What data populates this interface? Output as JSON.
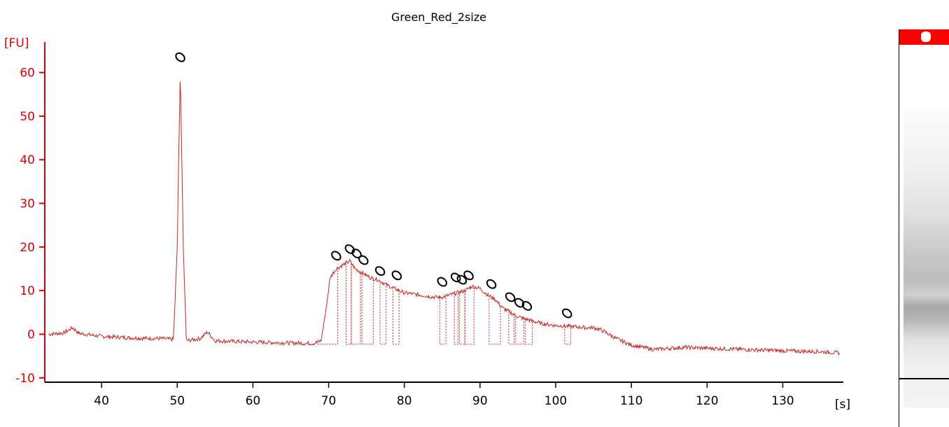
{
  "chart_data": {
    "type": "line",
    "title": "Green_Red_2size",
    "xlabel": "[s]",
    "ylabel": "[FU]",
    "xlim": [
      32.5,
      138
    ],
    "ylim": [
      -11,
      67
    ],
    "xticks": [
      40,
      50,
      60,
      70,
      80,
      90,
      100,
      110,
      120,
      130
    ],
    "yticks": [
      -10,
      0,
      10,
      20,
      30,
      40,
      50,
      60
    ],
    "colors": {
      "trace": "#cc2222",
      "axis": "#dd0000",
      "peak_marker": "#000000"
    },
    "series": [
      {
        "values": [
          [
            33,
            0.0
          ],
          [
            35,
            0.3
          ],
          [
            36.2,
            1.5
          ],
          [
            37,
            0.2
          ],
          [
            40,
            -0.5
          ],
          [
            45,
            -0.9
          ],
          [
            48,
            -1.0
          ],
          [
            49.5,
            -1.2
          ],
          [
            50.0,
            20
          ],
          [
            50.4,
            61
          ],
          [
            50.8,
            20
          ],
          [
            51.2,
            -1.5
          ],
          [
            53,
            -1.0
          ],
          [
            54,
            0.5
          ],
          [
            55,
            -1.5
          ],
          [
            60,
            -1.8
          ],
          [
            65,
            -2.0
          ],
          [
            68,
            -2.1
          ],
          [
            69,
            -1.5
          ],
          [
            69.6,
            5
          ],
          [
            70.2,
            13
          ],
          [
            71,
            15
          ],
          [
            72,
            16
          ],
          [
            72.8,
            16.8
          ],
          [
            73.5,
            15
          ],
          [
            74.5,
            14
          ],
          [
            75.5,
            13
          ],
          [
            76.5,
            12.5
          ],
          [
            78,
            11
          ],
          [
            80,
            9.5
          ],
          [
            82,
            9
          ],
          [
            84,
            8.5
          ],
          [
            85,
            8.5
          ],
          [
            86,
            9
          ],
          [
            87,
            9.5
          ],
          [
            88,
            10
          ],
          [
            89,
            11
          ],
          [
            90,
            10.5
          ],
          [
            91,
            9
          ],
          [
            92,
            8
          ],
          [
            93,
            6
          ],
          [
            94,
            5
          ],
          [
            95,
            4
          ],
          [
            96,
            3.5
          ],
          [
            98,
            2.5
          ],
          [
            100,
            2
          ],
          [
            102,
            1.8
          ],
          [
            104,
            1.5
          ],
          [
            105,
            1.5
          ],
          [
            106,
            1
          ],
          [
            108,
            -1
          ],
          [
            110,
            -2.5
          ],
          [
            113,
            -3.5
          ],
          [
            117,
            -3
          ],
          [
            120,
            -3.2
          ],
          [
            125,
            -3.5
          ],
          [
            130,
            -3.8
          ],
          [
            135,
            -4.0
          ],
          [
            137.5,
            -4.3
          ]
        ]
      }
    ],
    "peaks": [
      {
        "x": 50.4,
        "top": 61,
        "start": 49.9,
        "end": 51.1,
        "marker_y": 63.5
      },
      {
        "x": 71.0,
        "top": 15,
        "start": 68.5,
        "end": 71.2,
        "marker_y": 18
      },
      {
        "x": 72.8,
        "top": 16.8,
        "start": 72.3,
        "end": 73.0,
        "marker_y": 19.5
      },
      {
        "x": 73.7,
        "top": 15.5,
        "start": 73.0,
        "end": 74.2,
        "marker_y": 18.5
      },
      {
        "x": 74.6,
        "top": 14,
        "start": 74.4,
        "end": 75.9,
        "marker_y": 17
      },
      {
        "x": 76.8,
        "top": 12.5,
        "start": 76.8,
        "end": 77.6,
        "marker_y": 14.5
      },
      {
        "x": 79.0,
        "top": 10.8,
        "start": 78.5,
        "end": 79.3,
        "marker_y": 13.5
      },
      {
        "x": 85.0,
        "top": 8.5,
        "start": 84.7,
        "end": 85.5,
        "marker_y": 12
      },
      {
        "x": 86.8,
        "top": 9.5,
        "start": 86.6,
        "end": 87.1,
        "marker_y": 13
      },
      {
        "x": 87.6,
        "top": 9.8,
        "start": 87.3,
        "end": 88.0,
        "marker_y": 12.5
      },
      {
        "x": 88.5,
        "top": 10.5,
        "start": 88.0,
        "end": 89.2,
        "marker_y": 13.5
      },
      {
        "x": 91.5,
        "top": 9,
        "start": 91.2,
        "end": 92.7,
        "marker_y": 11.5
      },
      {
        "x": 94.0,
        "top": 5.5,
        "start": 93.8,
        "end": 94.5,
        "marker_y": 8.5
      },
      {
        "x": 95.2,
        "top": 4.5,
        "start": 94.7,
        "end": 95.8,
        "marker_y": 7.2
      },
      {
        "x": 96.2,
        "top": 4,
        "start": 96.0,
        "end": 96.9,
        "marker_y": 6.5
      },
      {
        "x": 101.5,
        "top": 2,
        "start": 101.2,
        "end": 102.0,
        "marker_y": 4.8
      }
    ]
  }
}
